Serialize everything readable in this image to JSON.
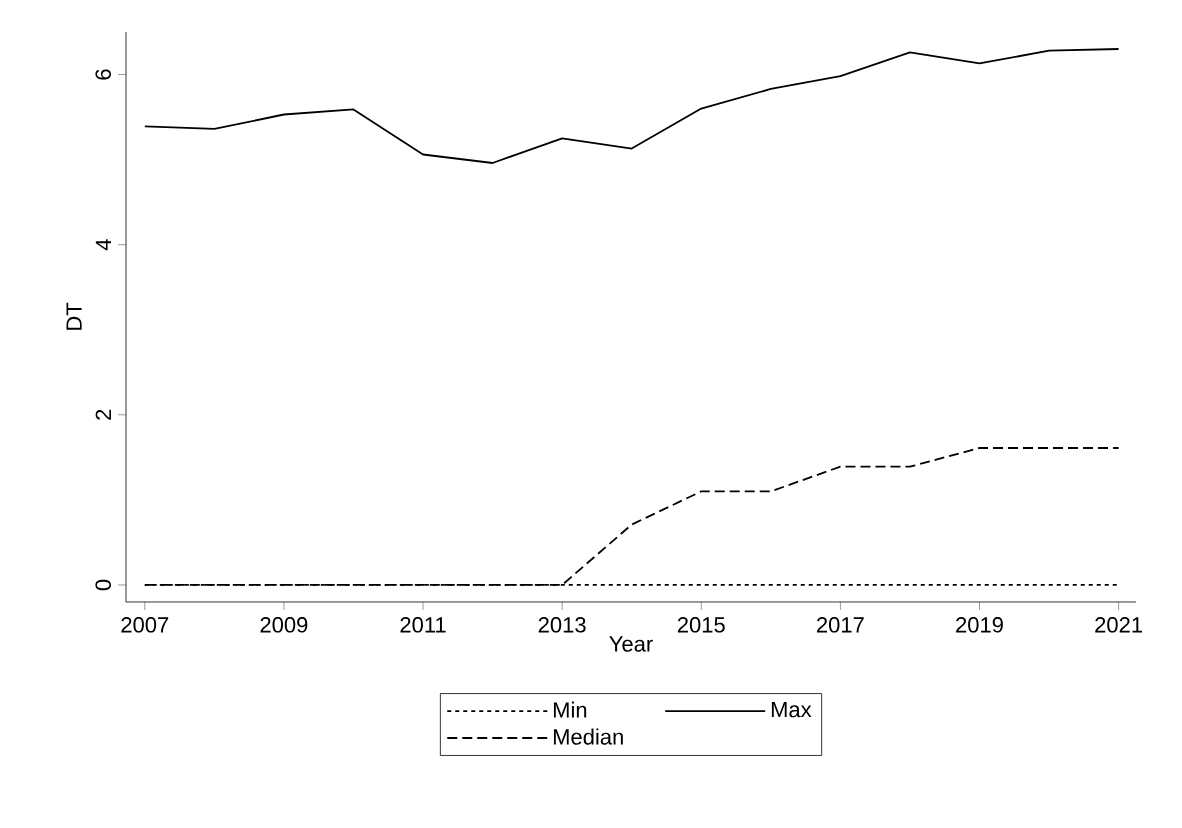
{
  "chart_data": {
    "type": "line",
    "xlabel": "Year",
    "ylabel": "DT",
    "x": [
      2007,
      2008,
      2009,
      2010,
      2011,
      2012,
      2013,
      2014,
      2015,
      2016,
      2017,
      2018,
      2019,
      2020,
      2021
    ],
    "series": [
      {
        "name": "Min",
        "color": "#000000",
        "line_style": "dotted",
        "values": [
          0,
          0,
          0,
          0,
          0,
          0,
          0,
          0,
          0,
          0,
          0,
          0,
          0,
          0,
          0
        ]
      },
      {
        "name": "Max",
        "color": "#000000",
        "line_style": "solid",
        "values": [
          5.39,
          5.36,
          5.53,
          5.59,
          5.06,
          4.96,
          5.25,
          5.13,
          5.6,
          5.83,
          5.98,
          6.26,
          6.13,
          6.28,
          6.3
        ]
      },
      {
        "name": "Median",
        "color": "#000000",
        "line_style": "dashed",
        "values": [
          0,
          0,
          0,
          0,
          0,
          0,
          0,
          0.71,
          1.1,
          1.1,
          1.39,
          1.39,
          1.61,
          1.61,
          1.61
        ]
      }
    ],
    "xlim": [
      2006.73,
      2021.25
    ],
    "ylim": [
      -0.2,
      6.5
    ],
    "xticks": [
      2007,
      2009,
      2011,
      2013,
      2015,
      2017,
      2019,
      2021
    ],
    "yticks": [
      0,
      2,
      4,
      6
    ],
    "grid": false,
    "legend": "bottom"
  }
}
